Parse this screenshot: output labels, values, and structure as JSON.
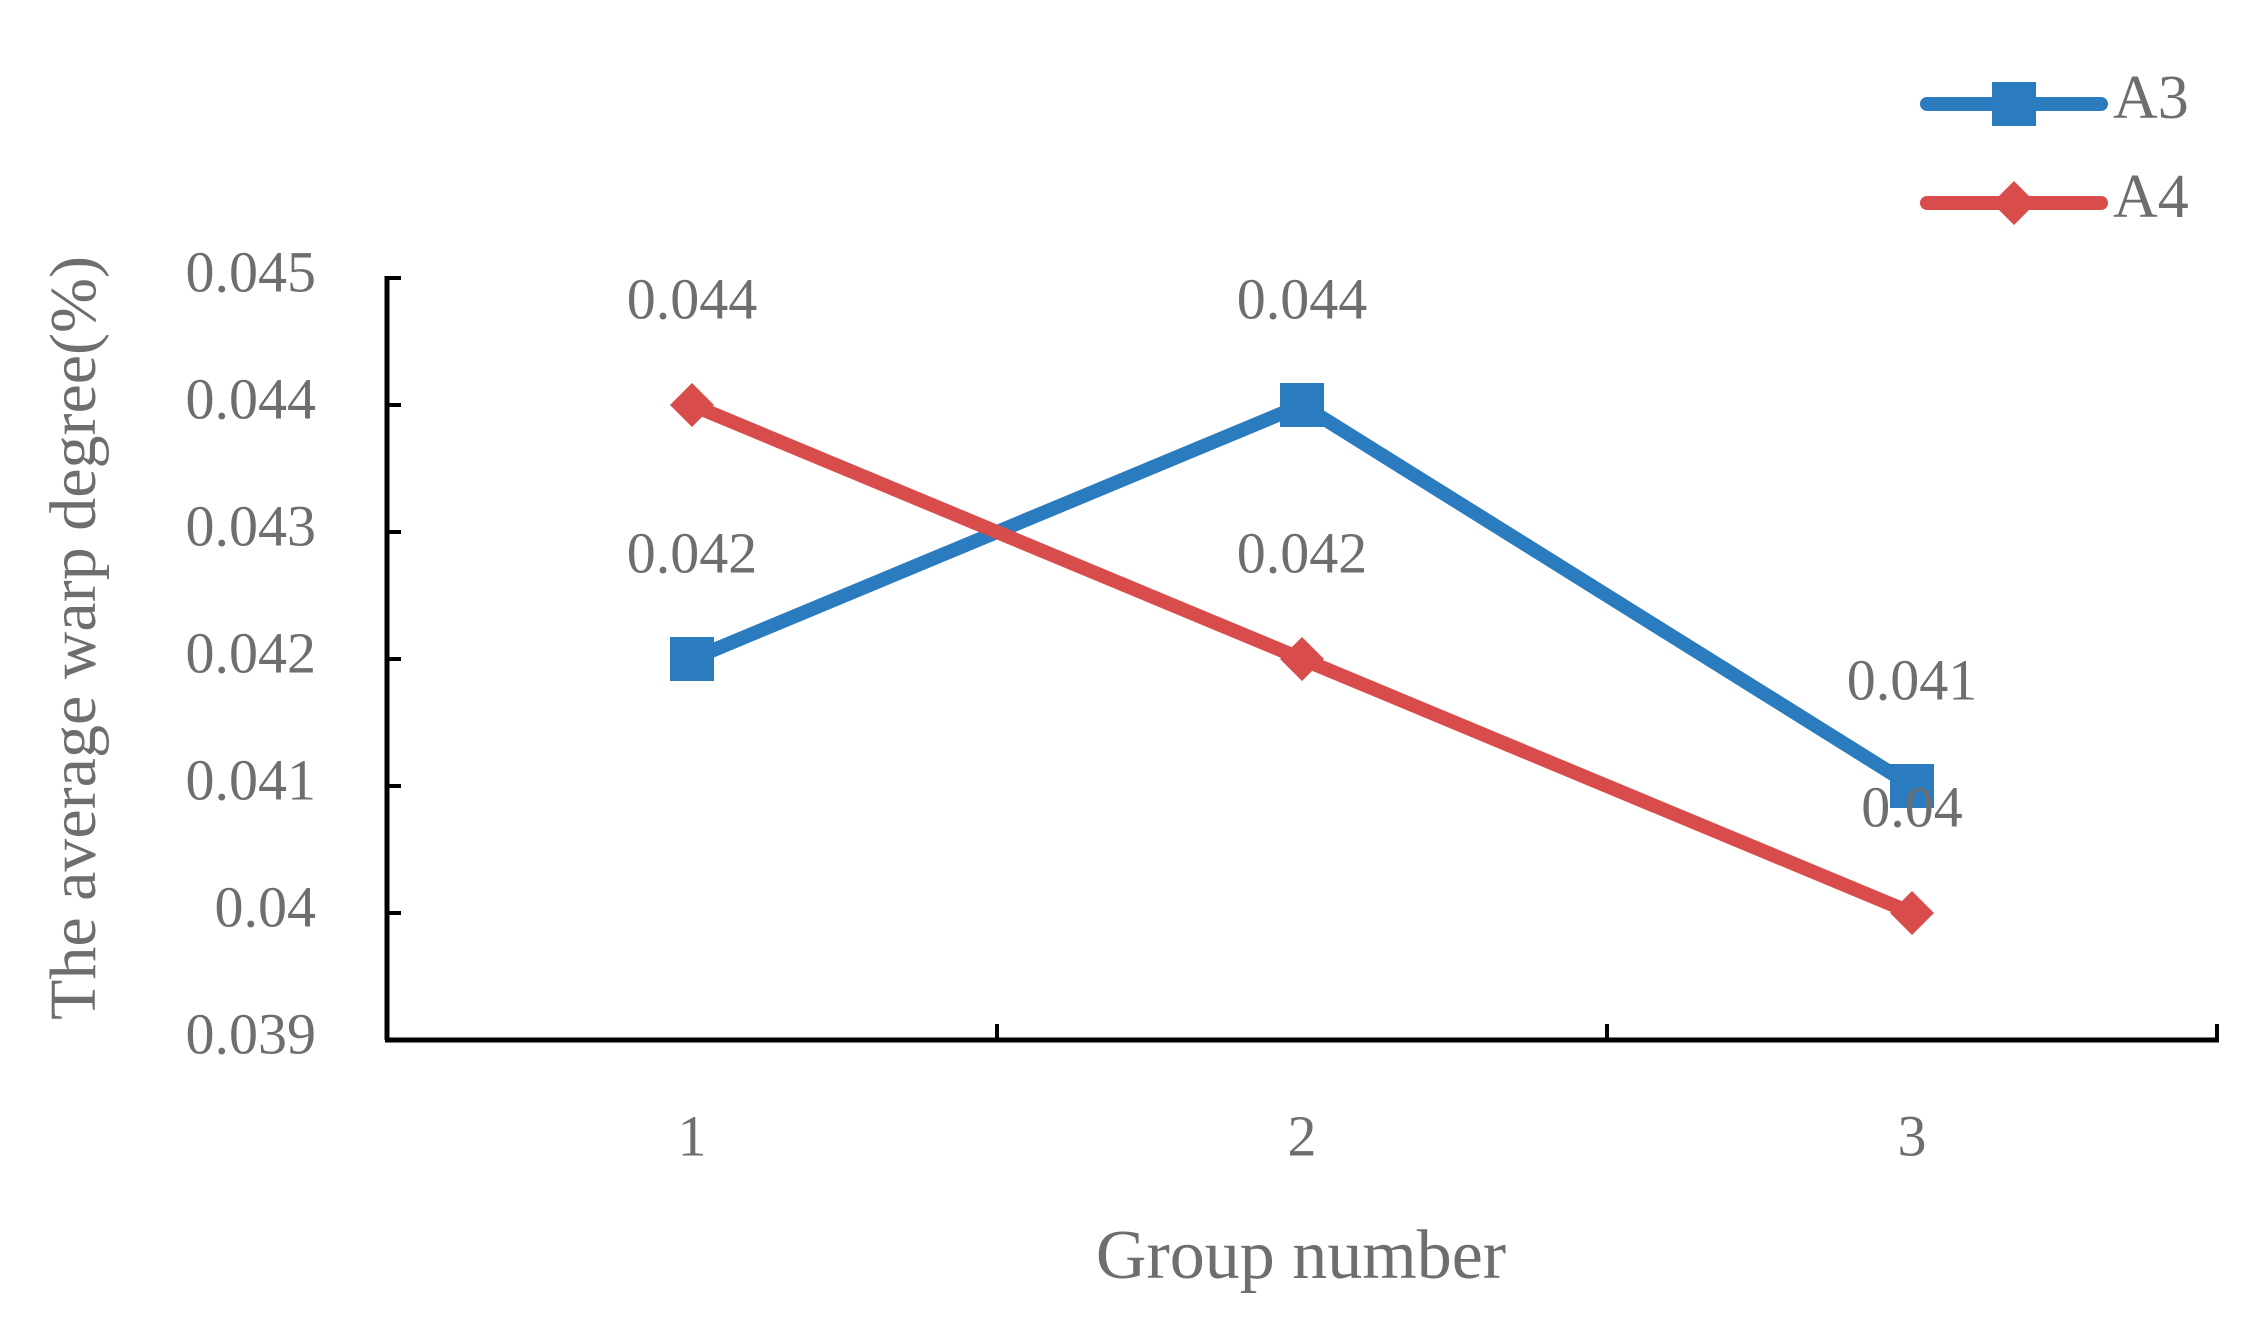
{
  "chart_data": {
    "type": "line",
    "x_label": "Group number",
    "y_label": "The average warp degree(%)",
    "categories": [
      "1",
      "2",
      "3"
    ],
    "series": [
      {
        "name": "A3",
        "color": "#2b7bbf",
        "marker": "square",
        "values": [
          0.042,
          0.044,
          0.041
        ]
      },
      {
        "name": "A4",
        "color": "#d94c4c",
        "marker": "diamond",
        "values": [
          0.044,
          0.042,
          0.04
        ]
      }
    ],
    "ylim": [
      0.039,
      0.045
    ],
    "yticks": [
      0.039,
      0.04,
      0.041,
      0.042,
      0.043,
      0.044,
      0.045
    ],
    "grid": false,
    "legend": "top-right",
    "data_labels": true
  }
}
